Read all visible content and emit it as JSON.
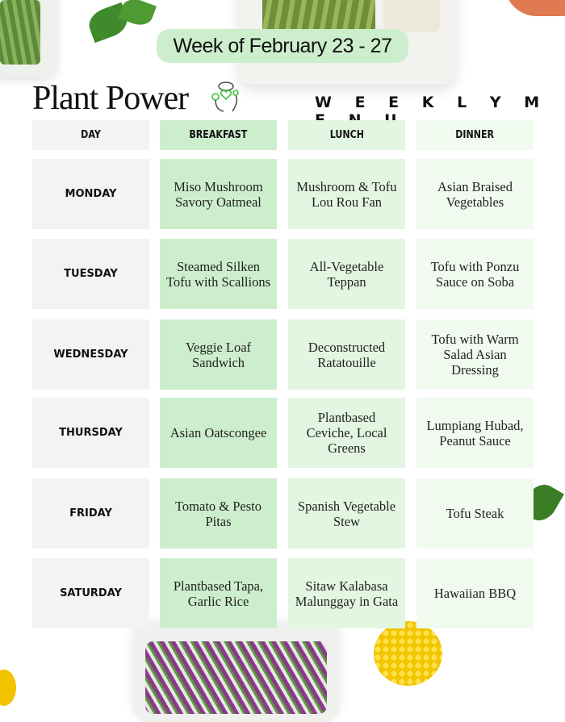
{
  "header": {
    "week_label": "Week of February 23 - 27",
    "brand": "Plant Power",
    "subtitle": "W E E K L Y   M E N U"
  },
  "colors": {
    "breakfast": "#cdeecd",
    "lunch": "#e3f6e1",
    "dinner": "#f0faef",
    "day": "#f3f3f3",
    "logo": "#3fc23f"
  },
  "table": {
    "columns": [
      "DAY",
      "BREAKFAST",
      "LUNCH",
      "DINNER"
    ],
    "rows": [
      {
        "day": "MONDAY",
        "breakfast": "Miso Mushroom Savory Oatmeal",
        "lunch": "Mushroom & Tofu Lou Rou Fan",
        "dinner": "Asian Braised Vegetables"
      },
      {
        "day": "TUESDAY",
        "breakfast": "Steamed Silken Tofu with Scallions",
        "lunch": "All-Vegetable Teppan",
        "dinner": "Tofu with Ponzu Sauce on Soba"
      },
      {
        "day": "WEDNESDAY",
        "breakfast": "Veggie Loaf Sandwich",
        "lunch": "Deconstructed Ratatouille",
        "dinner": "Tofu with Warm Salad Asian Dressing"
      },
      {
        "day": "THURSDAY",
        "breakfast": "Asian Oatscongee",
        "lunch": "Plantbased Ceviche, Local Greens",
        "dinner": "Lumpiang Hubad, Peanut Sauce"
      },
      {
        "day": "FRIDAY",
        "breakfast": "Tomato & Pesto Pitas",
        "lunch": "Spanish Vegetable Stew",
        "dinner": "Tofu Steak"
      },
      {
        "day": "SATURDAY",
        "breakfast": "Plantbased Tapa, Garlic Rice",
        "lunch": "Sitaw Kalabasa Malunggay in Gata",
        "dinner": "Hawaiian BBQ"
      }
    ]
  }
}
